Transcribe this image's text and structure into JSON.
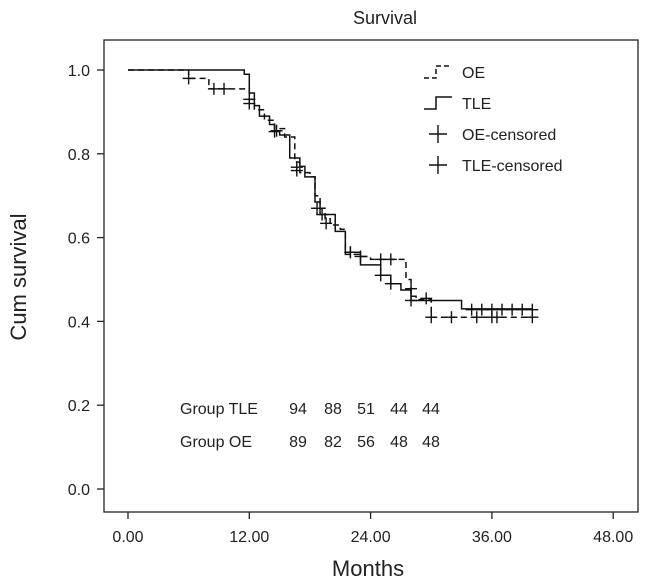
{
  "chart_data": {
    "type": "line",
    "subtype": "kaplan-meier",
    "title": "Survival",
    "xlabel": "Months",
    "ylabel": "Cum survival",
    "xlim": [
      -2,
      50
    ],
    "ylim": [
      -0.05,
      1.05
    ],
    "xticks": [
      0,
      12,
      24,
      36,
      48
    ],
    "xtick_labels": [
      "0.00",
      "12.00",
      "24.00",
      "36.00",
      "48.00"
    ],
    "yticks": [
      0.0,
      0.2,
      0.4,
      0.6,
      0.8,
      1.0
    ],
    "ytick_labels": [
      "0.0",
      "0.2",
      "0.4",
      "0.6",
      "0.8",
      "1.0"
    ],
    "legend": {
      "placement": "top-right",
      "entries": [
        {
          "label": "OE",
          "style": "dashed-step"
        },
        {
          "label": "TLE",
          "style": "solid-step"
        },
        {
          "label": "OE-censored",
          "style": "plus"
        },
        {
          "label": "TLE-censored",
          "style": "plus"
        }
      ]
    },
    "series": [
      {
        "name": "OE",
        "style": "dashed",
        "steps": [
          [
            0,
            1.0
          ],
          [
            6,
            0.98
          ],
          [
            8,
            0.955
          ],
          [
            12,
            0.93
          ],
          [
            12.5,
            0.905
          ],
          [
            13.5,
            0.88
          ],
          [
            14.5,
            0.86
          ],
          [
            15.5,
            0.84
          ],
          [
            16.5,
            0.78
          ],
          [
            17,
            0.755
          ],
          [
            18,
            0.745
          ],
          [
            18.5,
            0.7
          ],
          [
            19,
            0.67
          ],
          [
            19.5,
            0.645
          ],
          [
            20,
            0.63
          ],
          [
            21,
            0.62
          ],
          [
            21.5,
            0.56
          ],
          [
            23,
            0.555
          ],
          [
            24,
            0.548
          ],
          [
            27.5,
            0.5
          ],
          [
            28,
            0.46
          ],
          [
            28.5,
            0.452
          ],
          [
            30,
            0.41
          ],
          [
            40,
            0.41
          ]
        ],
        "censored": [
          [
            6,
            0.98
          ],
          [
            8.5,
            0.955
          ],
          [
            9.5,
            0.955
          ],
          [
            12,
            0.92
          ],
          [
            14.5,
            0.853
          ],
          [
            16.7,
            0.76
          ],
          [
            19.2,
            0.655
          ],
          [
            19.6,
            0.634
          ],
          [
            22,
            0.565
          ],
          [
            23,
            0.555
          ],
          [
            25,
            0.548
          ],
          [
            26,
            0.548
          ],
          [
            28,
            0.478
          ],
          [
            29.5,
            0.455
          ],
          [
            30,
            0.41
          ],
          [
            32,
            0.41
          ],
          [
            34.5,
            0.41
          ],
          [
            36,
            0.41
          ],
          [
            36.5,
            0.41
          ],
          [
            40,
            0.41
          ]
        ]
      },
      {
        "name": "TLE",
        "style": "solid",
        "steps": [
          [
            0,
            1.0
          ],
          [
            11.5,
            0.99
          ],
          [
            12,
            0.945
          ],
          [
            12.5,
            0.915
          ],
          [
            13,
            0.89
          ],
          [
            14,
            0.87
          ],
          [
            14.5,
            0.855
          ],
          [
            15,
            0.845
          ],
          [
            16,
            0.79
          ],
          [
            17,
            0.77
          ],
          [
            17.5,
            0.745
          ],
          [
            18.5,
            0.685
          ],
          [
            19,
            0.655
          ],
          [
            20.5,
            0.615
          ],
          [
            21.5,
            0.565
          ],
          [
            23,
            0.535
          ],
          [
            25,
            0.51
          ],
          [
            26,
            0.49
          ],
          [
            27,
            0.475
          ],
          [
            28,
            0.45
          ],
          [
            33,
            0.43
          ],
          [
            40,
            0.43
          ]
        ],
        "censored": [
          [
            12,
            0.93
          ],
          [
            14.7,
            0.855
          ],
          [
            16.7,
            0.768
          ],
          [
            18.7,
            0.67
          ],
          [
            22,
            0.565
          ],
          [
            25,
            0.51
          ],
          [
            26,
            0.49
          ],
          [
            28,
            0.45
          ],
          [
            34,
            0.428
          ],
          [
            35,
            0.428
          ],
          [
            36,
            0.428
          ],
          [
            37,
            0.428
          ],
          [
            38,
            0.428
          ],
          [
            39,
            0.428
          ],
          [
            40,
            0.428
          ]
        ]
      }
    ],
    "risk_table": {
      "rows": [
        {
          "label": "Group TLE",
          "values": [
            "94",
            "88",
            "51",
            "44",
            "44"
          ]
        },
        {
          "label": "Group OE",
          "values": [
            "89",
            "82",
            "56",
            "48",
            "48"
          ]
        }
      ]
    }
  }
}
